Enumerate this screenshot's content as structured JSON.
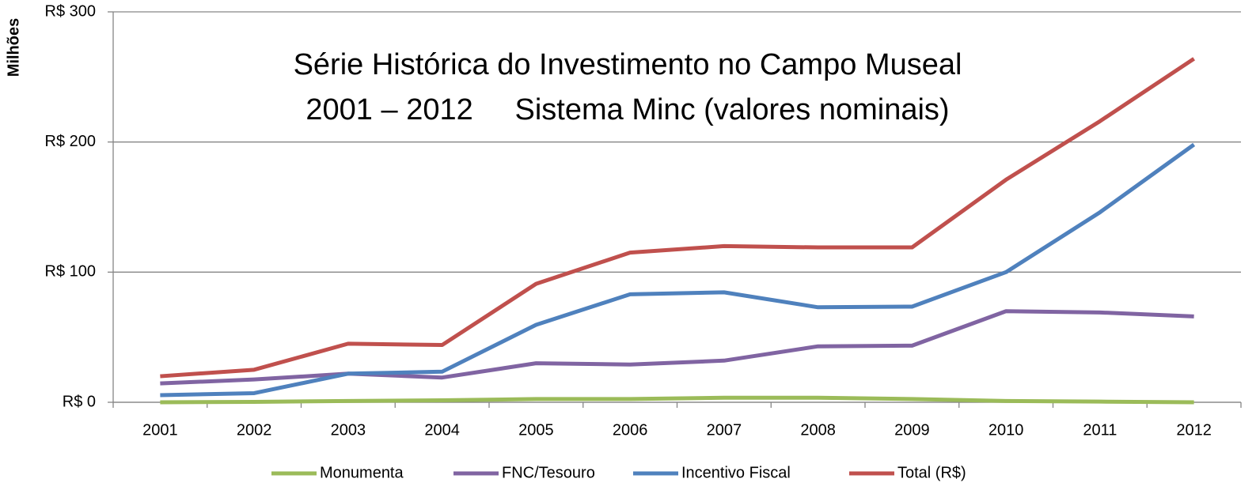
{
  "chart_data": {
    "type": "line",
    "title": [
      "Série Histórica do Investimento no Campo Museal",
      "2001 – 2012     Sistema Minc (valores nominais)"
    ],
    "y_label": "Milhões",
    "categories": [
      "2001",
      "2002",
      "2003",
      "2004",
      "2005",
      "2006",
      "2007",
      "2008",
      "2009",
      "2010",
      "2011",
      "2012"
    ],
    "series": [
      {
        "name": "Monumenta",
        "color": "#9bbb59",
        "values": [
          0,
          0.3,
          1,
          1.5,
          2.5,
          2.5,
          3.5,
          3.5,
          2.5,
          1,
          0.5,
          0
        ]
      },
      {
        "name": "FNC/Tesouro",
        "color": "#8064a2",
        "values": [
          14.5,
          17.5,
          22,
          19,
          30,
          29,
          32,
          43,
          43.5,
          70,
          69,
          66
        ]
      },
      {
        "name": "Incentivo Fiscal",
        "color": "#4f81bd",
        "values": [
          5.5,
          7,
          22,
          23.5,
          59.5,
          83,
          84.5,
          73,
          73.5,
          100,
          146,
          198
        ]
      },
      {
        "name": "Total (R$)",
        "color": "#c0504d",
        "values": [
          20,
          25,
          45,
          44,
          91,
          115,
          120,
          119,
          119,
          171,
          216,
          264
        ]
      }
    ],
    "ylim": [
      0,
      300
    ],
    "yticks": [
      {
        "value": 0,
        "label": "R$ 0"
      },
      {
        "value": 100,
        "label": "R$ 100"
      },
      {
        "value": 200,
        "label": "R$ 200"
      },
      {
        "value": 300,
        "label": "R$ 300"
      }
    ],
    "grid": true,
    "legend": "bottom"
  }
}
